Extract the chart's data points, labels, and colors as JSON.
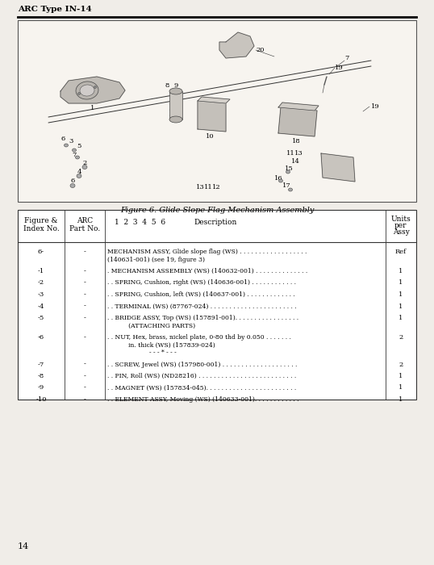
{
  "header_text": "ARC Type IN-14",
  "figure_caption": "Figure 6. Glide Slope Flag Mechanism Assembly",
  "page_number": "14",
  "bg_color": "#f0ede8",
  "page_bg": "#f0ede8",
  "table_rows": [
    {
      "fig": "6-",
      "part": "-",
      "desc": "MECHANISM ASSY, Glide slope flag (WS) . . . . . . . . . . . . . . . . . .",
      "desc2": "(140631-001) (see 19, figure 3)",
      "desc3": "",
      "qty": "Ref"
    },
    {
      "fig": "-1",
      "part": "-",
      "desc": ". MECHANISM ASSEMBLY (WS) (140632-001) . . . . . . . . . . . . . .",
      "desc2": "",
      "desc3": "",
      "qty": "1"
    },
    {
      "fig": "-2",
      "part": "-",
      "desc": ". . SPRING, Cushion, right (WS) (140636-001) . . . . . . . . . . . .",
      "desc2": "",
      "desc3": "",
      "qty": "1"
    },
    {
      "fig": "-3",
      "part": "-",
      "desc": ". . SPRING, Cushion, left (WS) (140637-001) . . . . . . . . . . . . .",
      "desc2": "",
      "desc3": "",
      "qty": "1"
    },
    {
      "fig": "-4",
      "part": "-",
      "desc": ". . TERMINAL (WS) (87767-024) . . . . . . . . . . . . . . . . . . . . . . .",
      "desc2": "",
      "desc3": "",
      "qty": "1"
    },
    {
      "fig": "-5",
      "part": "-",
      "desc": ". . BRIDGE ASSY, Top (WS) (157891-001). . . . . . . . . . . . . . . . .",
      "desc2": "           (ATTACHING PARTS)",
      "desc3": "",
      "qty": "1"
    },
    {
      "fig": "-6",
      "part": "-",
      "desc": ". . NUT, Hex, brass, nickel plate, 0-80 thd by 0.050 . . . . . . .",
      "desc2": "           in. thick (WS) (157839-024)",
      "desc3": "- - - * - - -",
      "qty": "2"
    },
    {
      "fig": "-7",
      "part": "-",
      "desc": ". . SCREW, Jewel (WS) (157980-001) . . . . . . . . . . . . . . . . . . . .",
      "desc2": "",
      "desc3": "",
      "qty": "2"
    },
    {
      "fig": "-8",
      "part": "-",
      "desc": ". . PIN, Roll (WS) (ND28216) . . . . . . . . . . . . . . . . . . . . . . . . . .",
      "desc2": "",
      "desc3": "",
      "qty": "1"
    },
    {
      "fig": "-9",
      "part": "-",
      "desc": ". . MAGNET (WS) (157834-045). . . . . . . . . . . . . . . . . . . . . . . .",
      "desc2": "",
      "desc3": "",
      "qty": "1"
    },
    {
      "fig": "-10",
      "part": "-",
      "desc": ". . ELEMENT ASSY, Moving (WS) (140633-001). . . . . . . . . . . .",
      "desc2": "",
      "desc3": "",
      "qty": "1"
    }
  ]
}
